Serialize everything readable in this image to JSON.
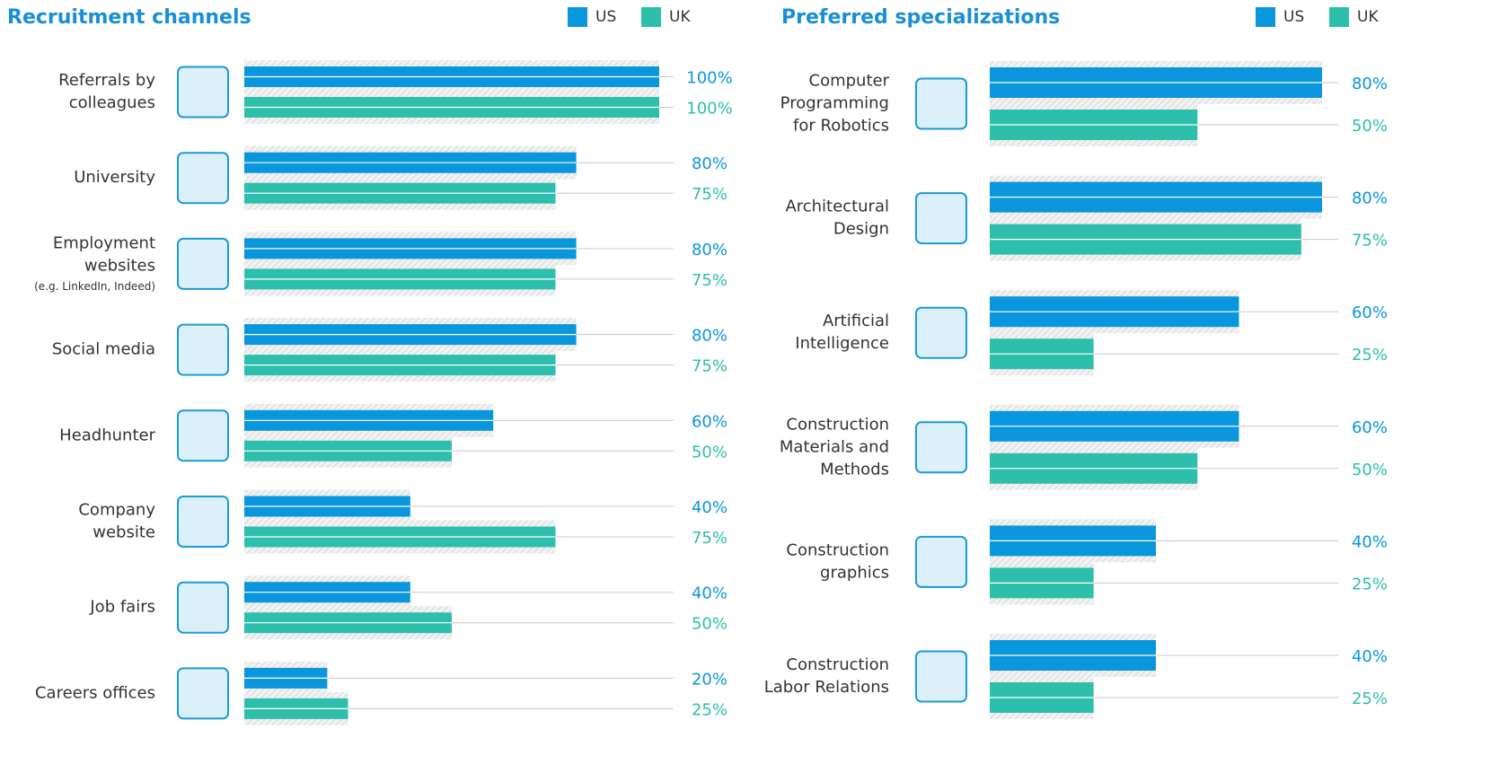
{
  "chart_data": [
    {
      "type": "bar",
      "orientation": "horizontal",
      "title": "Recruitment channels",
      "categories": [
        [
          "Referrals by",
          "colleagues"
        ],
        [
          "University"
        ],
        [
          "Employment",
          "websites"
        ],
        [
          "Social media"
        ],
        [
          "Headhunter"
        ],
        [
          "Company",
          "website"
        ],
        [
          "Job fairs"
        ],
        [
          "Careers offices"
        ]
      ],
      "category_notes": [
        null,
        null,
        "(e.g. LinkedIn, Indeed)",
        null,
        null,
        null,
        null,
        null
      ],
      "xlim": [
        0,
        100
      ],
      "series": [
        {
          "name": "US",
          "color": "#0a96dc",
          "values": [
            100,
            80,
            80,
            80,
            60,
            40,
            40,
            20
          ],
          "value_labels": [
            "100%",
            "80%",
            "80%",
            "80%",
            "60%",
            "40%",
            "40%",
            "20%"
          ]
        },
        {
          "name": "UK",
          "color": "#2ebfac",
          "values": [
            100,
            75,
            75,
            75,
            50,
            75,
            50,
            25
          ],
          "value_labels": [
            "100%",
            "75%",
            "75%",
            "75%",
            "50%",
            "75%",
            "50%",
            "25%"
          ]
        }
      ]
    },
    {
      "type": "bar",
      "orientation": "horizontal",
      "title": "Preferred specializations",
      "categories": [
        [
          "Computer",
          "Programming",
          "for Robotics"
        ],
        [
          "Architectural",
          "Design"
        ],
        [
          "Artificial",
          "Intelligence"
        ],
        [
          "Construction",
          "Materials and",
          "Methods"
        ],
        [
          "Construction",
          "graphics"
        ],
        [
          "Construction",
          "Labor Relations"
        ]
      ],
      "xlim": [
        0,
        100
      ],
      "series": [
        {
          "name": "US",
          "color": "#0a96dc",
          "values": [
            80,
            80,
            60,
            60,
            40,
            40
          ],
          "value_labels": [
            "80%",
            "80%",
            "60%",
            "60%",
            "40%",
            "40%"
          ]
        },
        {
          "name": "UK",
          "color": "#2ebfac",
          "values": [
            50,
            75,
            25,
            50,
            25,
            25
          ],
          "value_labels": [
            "50%",
            "75%",
            "25%",
            "50%",
            "25%",
            "25%"
          ]
        }
      ]
    }
  ]
}
